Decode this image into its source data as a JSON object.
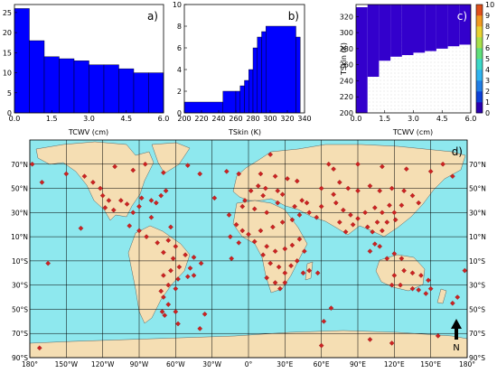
{
  "chart_data": [
    {
      "type": "bar",
      "panel_label": "a)",
      "xlabel": "TCWV (cm)",
      "ylabel": "",
      "xlim": [
        0,
        6
      ],
      "ylim": [
        0,
        27
      ],
      "xticks": [
        "0.0",
        "1.5",
        "3.0",
        "4.5",
        "6.0"
      ],
      "yticks": [
        "0",
        "5",
        "10",
        "15",
        "20",
        "25"
      ],
      "bins": [
        {
          "x0": 0.0,
          "x1": 0.6,
          "value": 26
        },
        {
          "x0": 0.6,
          "x1": 1.2,
          "value": 18
        },
        {
          "x0": 1.2,
          "x1": 1.8,
          "value": 14
        },
        {
          "x0": 1.8,
          "x1": 2.4,
          "value": 13.5
        },
        {
          "x0": 2.4,
          "x1": 3.0,
          "value": 13
        },
        {
          "x0": 3.0,
          "x1": 3.6,
          "value": 12
        },
        {
          "x0": 3.6,
          "x1": 4.2,
          "value": 12
        },
        {
          "x0": 4.2,
          "x1": 4.8,
          "value": 11
        },
        {
          "x0": 4.8,
          "x1": 5.4,
          "value": 10
        },
        {
          "x0": 5.4,
          "x1": 6.0,
          "value": 10
        }
      ],
      "bar_color": "#0000ff"
    },
    {
      "type": "bar",
      "panel_label": "b)",
      "xlabel": "TSkin (K)",
      "ylabel": "",
      "xlim": [
        200,
        340
      ],
      "ylim": [
        0,
        10
      ],
      "xticks": [
        "200",
        "220",
        "240",
        "260",
        "280",
        "300",
        "320",
        "340"
      ],
      "yticks": [
        "0",
        "2",
        "4",
        "6",
        "8",
        "10"
      ],
      "bins": [
        {
          "x0": 200,
          "x1": 245,
          "value": 1
        },
        {
          "x0": 245,
          "x1": 260,
          "value": 2
        },
        {
          "x0": 260,
          "x1": 265,
          "value": 2
        },
        {
          "x0": 265,
          "x1": 270,
          "value": 2.5
        },
        {
          "x0": 270,
          "x1": 275,
          "value": 3
        },
        {
          "x0": 275,
          "x1": 280,
          "value": 4
        },
        {
          "x0": 280,
          "x1": 285,
          "value": 6
        },
        {
          "x0": 285,
          "x1": 290,
          "value": 7
        },
        {
          "x0": 290,
          "x1": 295,
          "value": 7.5
        },
        {
          "x0": 295,
          "x1": 330,
          "value": 8
        },
        {
          "x0": 330,
          "x1": 335,
          "value": 7
        }
      ],
      "bar_color": "#0000ff"
    },
    {
      "type": "heatmap",
      "panel_label": "c)",
      "xlabel": "TCWV (cm)",
      "ylabel": "TSkin (K)",
      "xlim": [
        0,
        6
      ],
      "ylim": [
        200,
        335
      ],
      "xticks": [
        "0.0",
        "1.5",
        "3.0",
        "4.5",
        "6.0"
      ],
      "yticks": [
        "200",
        "220",
        "240",
        "260",
        "280",
        "300",
        "320"
      ],
      "colorbar_ticks": [
        "0",
        "1",
        "2",
        "3",
        "4",
        "5",
        "6",
        "7",
        "8",
        "9",
        "10"
      ],
      "fill_color": "#3300cc",
      "empty_region_lower_bound_by_bin": [
        {
          "x0": 0.0,
          "x1": 0.6,
          "tskin": 200
        },
        {
          "x0": 0.6,
          "x1": 1.2,
          "tskin": 245
        },
        {
          "x0": 1.2,
          "x1": 1.8,
          "tskin": 265
        },
        {
          "x0": 1.8,
          "x1": 2.4,
          "tskin": 270
        },
        {
          "x0": 2.4,
          "x1": 3.0,
          "tskin": 272
        },
        {
          "x0": 3.0,
          "x1": 3.6,
          "tskin": 275
        },
        {
          "x0": 3.6,
          "x1": 4.2,
          "tskin": 277
        },
        {
          "x0": 4.2,
          "x1": 4.8,
          "tskin": 280
        },
        {
          "x0": 4.8,
          "x1": 5.4,
          "tskin": 283
        },
        {
          "x0": 5.4,
          "x1": 6.0,
          "tskin": 285
        }
      ]
    },
    {
      "type": "scatter",
      "panel_label": "d)",
      "xlim": [
        -180,
        180
      ],
      "ylim": [
        -90,
        90
      ],
      "lon_ticks": [
        "180°",
        "150°W",
        "120°W",
        "90°W",
        "60°W",
        "30°W",
        "0°",
        "30°E",
        "60°E",
        "90°E",
        "120°E",
        "150°E",
        "180°"
      ],
      "lat_ticks": [
        "70°N",
        "50°N",
        "30°N",
        "10°N",
        "10°S",
        "30°S",
        "50°S",
        "70°S",
        "90°S"
      ],
      "north_label": "N",
      "ocean_color": "#8ee8ee",
      "land_color": "#f5deb3",
      "marker_color": "#cc2222",
      "points": [
        [
          -178,
          70
        ],
        [
          -170,
          55
        ],
        [
          -165,
          -12
        ],
        [
          -138,
          17
        ],
        [
          -172,
          -82
        ],
        [
          -150,
          62
        ],
        [
          -135,
          60
        ],
        [
          -128,
          55
        ],
        [
          -122,
          50
        ],
        [
          -120,
          44
        ],
        [
          -115,
          40
        ],
        [
          -118,
          34
        ],
        [
          -111,
          32
        ],
        [
          -105,
          40
        ],
        [
          -100,
          37
        ],
        [
          -95,
          30
        ],
        [
          -90,
          35
        ],
        [
          -88,
          42
        ],
        [
          -80,
          40
        ],
        [
          -76,
          38
        ],
        [
          -72,
          44
        ],
        [
          -68,
          48
        ],
        [
          -80,
          26
        ],
        [
          -95,
          65
        ],
        [
          -85,
          70
        ],
        [
          -70,
          63
        ],
        [
          -110,
          68
        ],
        [
          -40,
          62
        ],
        [
          -50,
          69
        ],
        [
          -28,
          42
        ],
        [
          -64,
          18
        ],
        [
          -98,
          19
        ],
        [
          -90,
          15
        ],
        [
          -84,
          10
        ],
        [
          -75,
          5
        ],
        [
          -66,
          7
        ],
        [
          -60,
          2
        ],
        [
          -70,
          -3
        ],
        [
          -62,
          -8
        ],
        [
          -52,
          -5
        ],
        [
          -45,
          -7
        ],
        [
          -39,
          -12
        ],
        [
          -48,
          -16
        ],
        [
          -57,
          -15
        ],
        [
          -64,
          -18
        ],
        [
          -70,
          -22
        ],
        [
          -58,
          -25
        ],
        [
          -50,
          -23
        ],
        [
          -45,
          -22
        ],
        [
          -66,
          -30
        ],
        [
          -60,
          -33
        ],
        [
          -72,
          -35
        ],
        [
          -70,
          -40
        ],
        [
          -66,
          -46
        ],
        [
          -71,
          -52
        ],
        [
          -69,
          -55
        ],
        [
          -60,
          -52
        ],
        [
          -36,
          -54
        ],
        [
          -58,
          -62
        ],
        [
          -40,
          -66
        ],
        [
          -18,
          64
        ],
        [
          -8,
          62
        ],
        [
          -3,
          40
        ],
        [
          2,
          48
        ],
        [
          8,
          52
        ],
        [
          14,
          50
        ],
        [
          22,
          60
        ],
        [
          24,
          48
        ],
        [
          28,
          45
        ],
        [
          32,
          58
        ],
        [
          40,
          56
        ],
        [
          12,
          44
        ],
        [
          24,
          38
        ],
        [
          -5,
          35
        ],
        [
          5,
          33
        ],
        [
          15,
          30
        ],
        [
          -16,
          28
        ],
        [
          -10,
          20
        ],
        [
          -5,
          15
        ],
        [
          0,
          12
        ],
        [
          10,
          15
        ],
        [
          20,
          18
        ],
        [
          28,
          22
        ],
        [
          36,
          24
        ],
        [
          42,
          28
        ],
        [
          50,
          30
        ],
        [
          56,
          26
        ],
        [
          60,
          35
        ],
        [
          48,
          38
        ],
        [
          44,
          40
        ],
        [
          38,
          35
        ],
        [
          -15,
          10
        ],
        [
          -8,
          5
        ],
        [
          5,
          6
        ],
        [
          15,
          2
        ],
        [
          22,
          -2
        ],
        [
          30,
          0
        ],
        [
          36,
          3
        ],
        [
          42,
          8
        ],
        [
          46,
          -2
        ],
        [
          12,
          -5
        ],
        [
          18,
          -12
        ],
        [
          25,
          -15
        ],
        [
          30,
          -20
        ],
        [
          35,
          -14
        ],
        [
          40,
          -10
        ],
        [
          15,
          -24
        ],
        [
          22,
          -28
        ],
        [
          30,
          -28
        ],
        [
          26,
          -33
        ],
        [
          45,
          -20
        ],
        [
          50,
          -18
        ],
        [
          57,
          -20
        ],
        [
          68,
          -49
        ],
        [
          62,
          -60
        ],
        [
          60,
          -80
        ],
        [
          18,
          78
        ],
        [
          10,
          62
        ],
        [
          -14,
          -8
        ],
        [
          60,
          50
        ],
        [
          70,
          45
        ],
        [
          75,
          55
        ],
        [
          82,
          50
        ],
        [
          90,
          48
        ],
        [
          100,
          52
        ],
        [
          108,
          48
        ],
        [
          118,
          50
        ],
        [
          128,
          48
        ],
        [
          135,
          44
        ],
        [
          72,
          38
        ],
        [
          78,
          32
        ],
        [
          84,
          28
        ],
        [
          90,
          25
        ],
        [
          96,
          30
        ],
        [
          104,
          34
        ],
        [
          110,
          30
        ],
        [
          116,
          36
        ],
        [
          120,
          30
        ],
        [
          126,
          36
        ],
        [
          140,
          38
        ],
        [
          75,
          22
        ],
        [
          80,
          14
        ],
        [
          86,
          20
        ],
        [
          98,
          18
        ],
        [
          102,
          14
        ],
        [
          106,
          22
        ],
        [
          110,
          15
        ],
        [
          114,
          22
        ],
        [
          121,
          24
        ],
        [
          104,
          4
        ],
        [
          108,
          2
        ],
        [
          100,
          -2
        ],
        [
          114,
          -8
        ],
        [
          120,
          -4
        ],
        [
          126,
          -8
        ],
        [
          70,
          66
        ],
        [
          90,
          70
        ],
        [
          110,
          68
        ],
        [
          130,
          66
        ],
        [
          150,
          64
        ],
        [
          160,
          70
        ],
        [
          168,
          60
        ],
        [
          66,
          70
        ],
        [
          100,
          -75
        ],
        [
          118,
          -78
        ],
        [
          156,
          -72
        ],
        [
          120,
          -22
        ],
        [
          128,
          -18
        ],
        [
          135,
          -20
        ],
        [
          142,
          -22
        ],
        [
          148,
          -26
        ],
        [
          118,
          -30
        ],
        [
          125,
          -30
        ],
        [
          135,
          -33
        ],
        [
          140,
          -34
        ],
        [
          146,
          -37
        ],
        [
          150,
          -33
        ],
        [
          168,
          -45
        ],
        [
          172,
          -40
        ],
        [
          178,
          -18
        ]
      ]
    }
  ]
}
